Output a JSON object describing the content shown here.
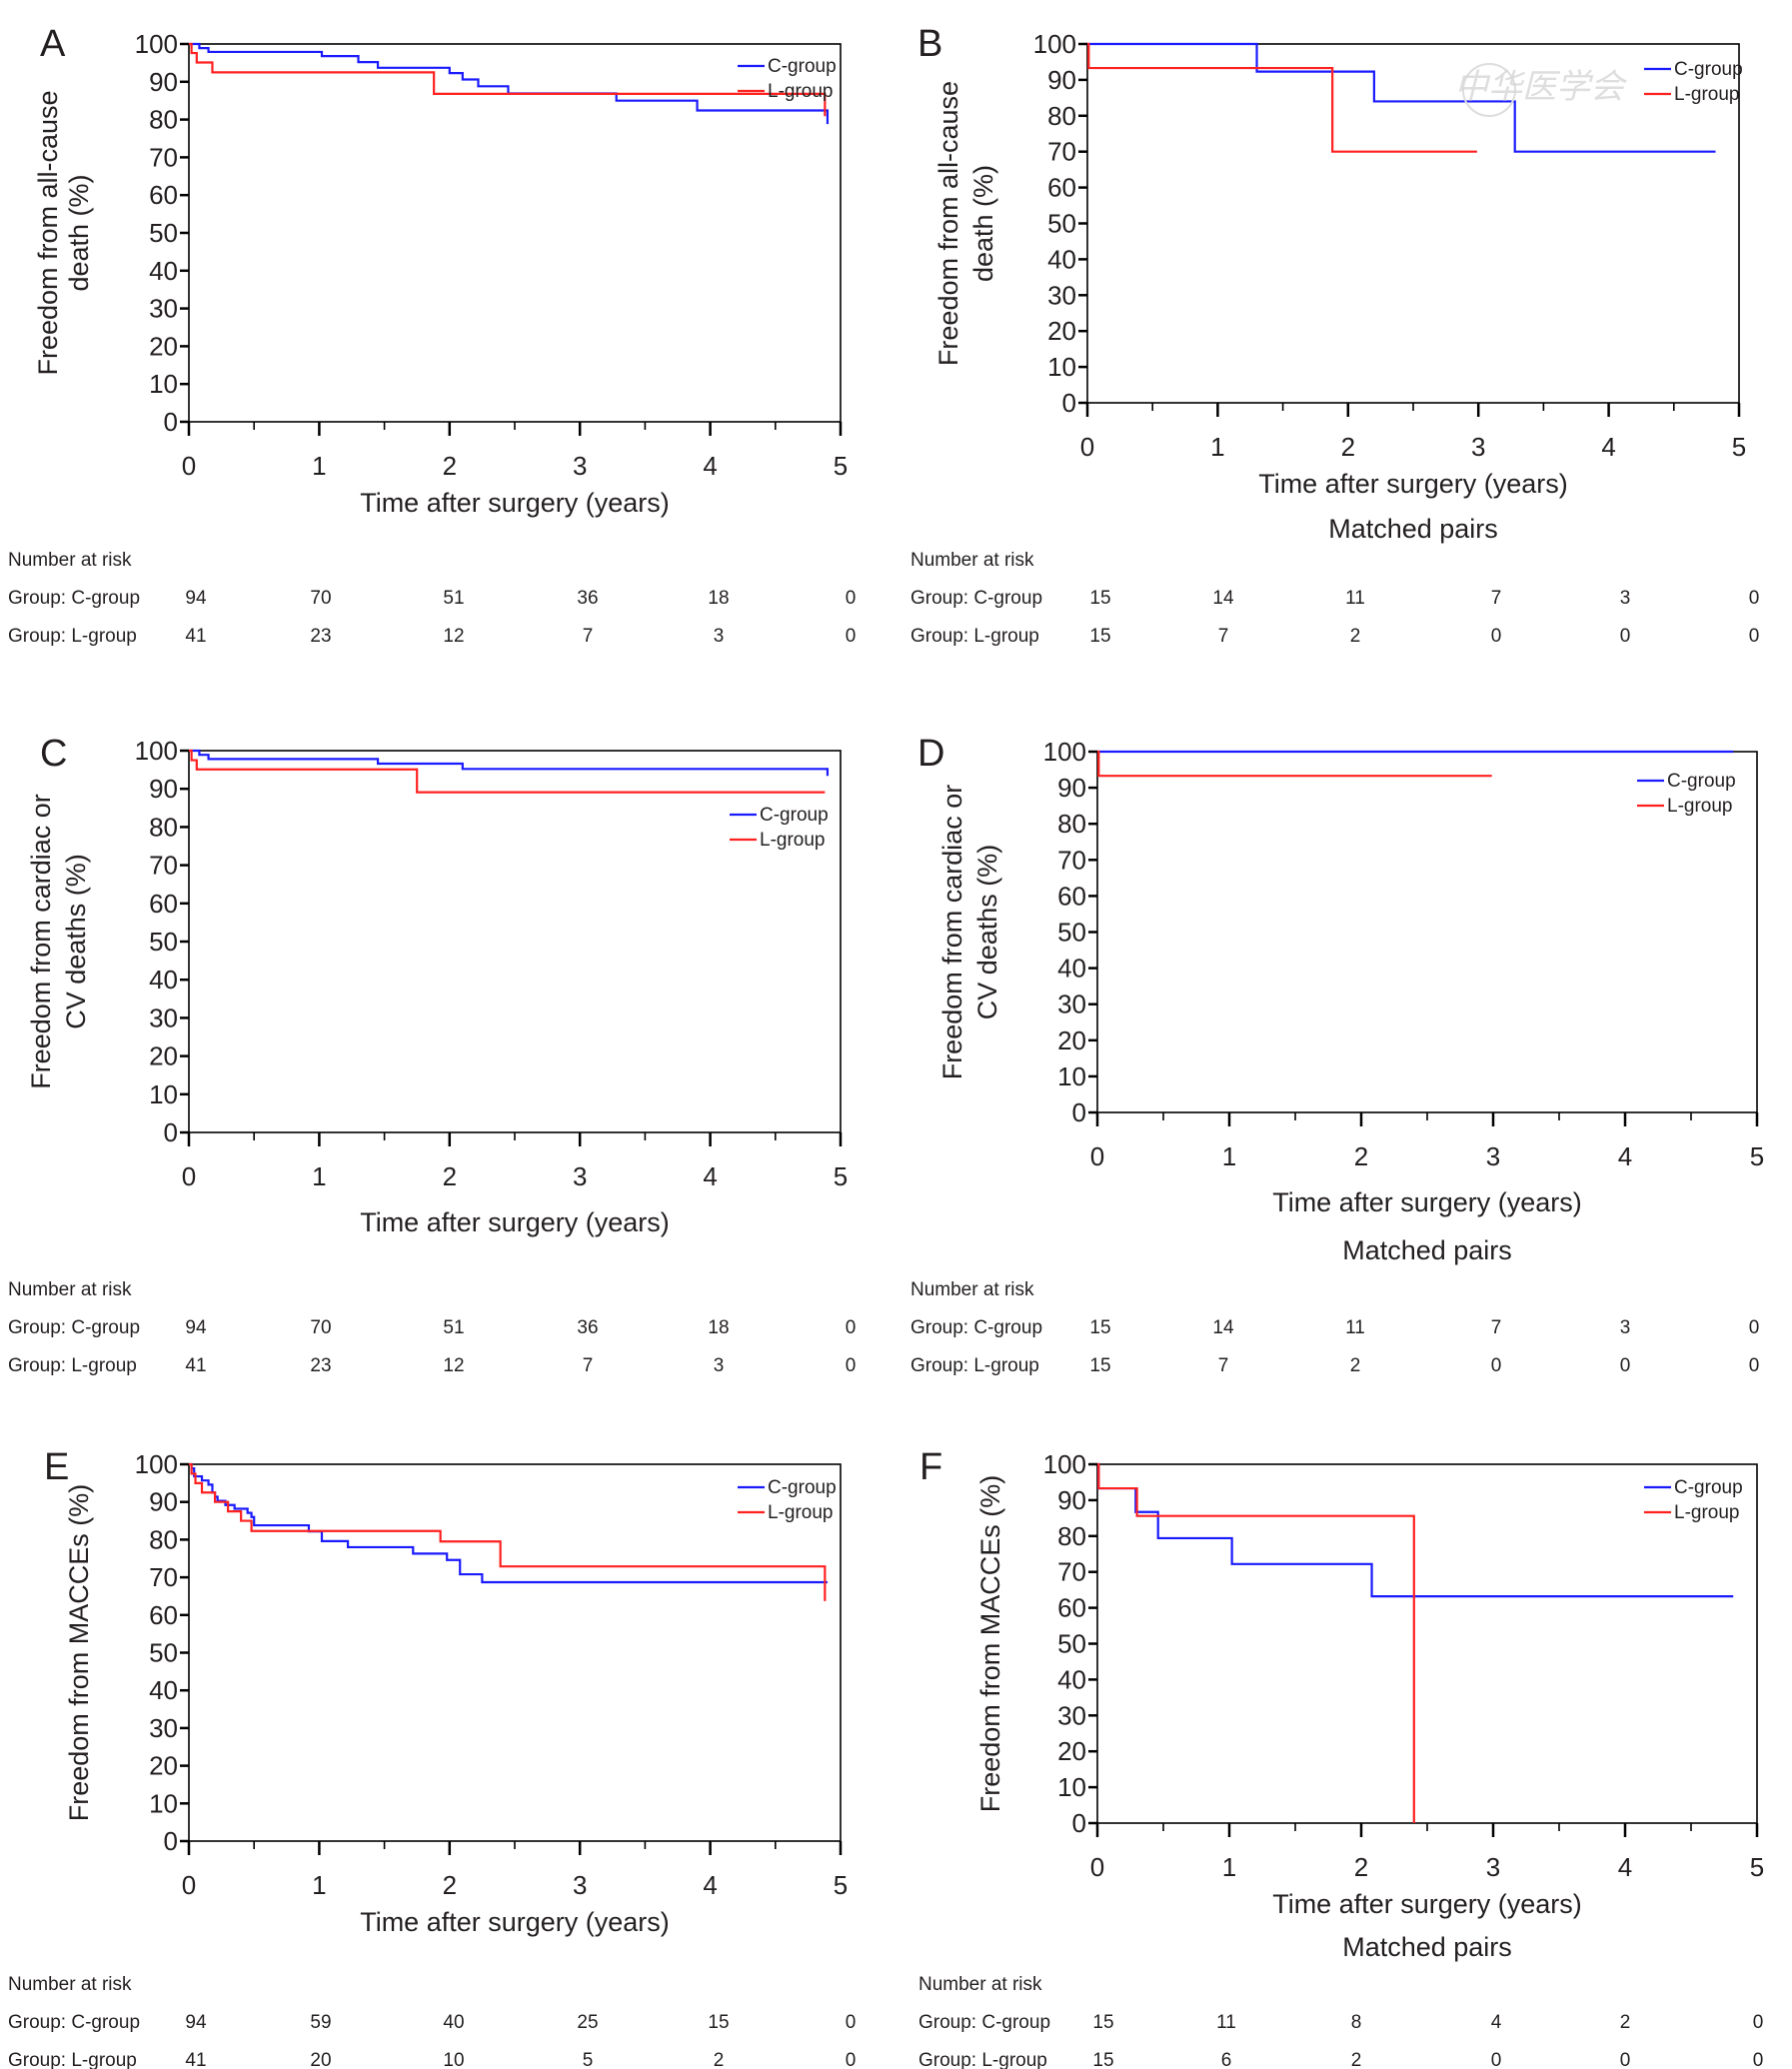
{
  "figure": {
    "watermark": "中华医学会",
    "colors": {
      "c_group": "#1a1aff",
      "l_group": "#ff2020",
      "axis": "#000000",
      "text": "#231f20"
    },
    "risk_header": "Number at risk",
    "risk_row_labels": [
      "Group: C-group",
      "Group: L-group"
    ]
  },
  "chart_data": [
    {
      "panel": "A",
      "type": "line",
      "step": true,
      "title": "",
      "subtitle": "",
      "xlabel": "Time after surgery (years)",
      "ylabel": [
        "Freedom from all-cause",
        "death (%)"
      ],
      "xlim": [
        0,
        5
      ],
      "ylim": [
        0,
        100
      ],
      "xticks": [
        0,
        1,
        2,
        3,
        4,
        5
      ],
      "yticks": [
        0,
        10,
        20,
        30,
        40,
        50,
        60,
        70,
        80,
        90,
        100
      ],
      "legend": {
        "position": "top-right",
        "entries": [
          "C-group",
          "L-group"
        ]
      },
      "series": [
        {
          "name": "C-group",
          "color": "#1a1aff",
          "x": [
            0,
            0.08,
            0.15,
            1.02,
            1.3,
            1.45,
            2.0,
            2.1,
            2.22,
            2.45,
            3.28,
            3.9,
            4.9
          ],
          "y": [
            100,
            98.9,
            97.9,
            96.8,
            95.2,
            93.7,
            92.3,
            90.6,
            88.8,
            86.9,
            85.0,
            82.4,
            78.8
          ]
        },
        {
          "name": "L-group",
          "color": "#ff2020",
          "x": [
            0,
            0.02,
            0.06,
            0.18,
            1.75,
            1.88,
            4.88
          ],
          "y": [
            100,
            97.6,
            95.1,
            92.5,
            92.5,
            86.8,
            80.9
          ]
        }
      ],
      "risk_table": {
        "times": [
          0,
          1,
          2,
          3,
          4,
          5
        ],
        "C-group": [
          94,
          70,
          51,
          36,
          18,
          0
        ],
        "L-group": [
          41,
          23,
          12,
          7,
          3,
          0
        ]
      }
    },
    {
      "panel": "B",
      "type": "line",
      "step": true,
      "subtitle": "Matched pairs",
      "xlabel": "Time after surgery (years)",
      "ylabel": [
        "Freedom from all-cause",
        "death (%)"
      ],
      "xlim": [
        0,
        5
      ],
      "ylim": [
        0,
        100
      ],
      "xticks": [
        0,
        1,
        2,
        3,
        4,
        5
      ],
      "yticks": [
        0,
        10,
        20,
        30,
        40,
        50,
        60,
        70,
        80,
        90,
        100
      ],
      "legend": {
        "position": "top-right",
        "entries": [
          "C-group",
          "L-group"
        ]
      },
      "series": [
        {
          "name": "C-group",
          "color": "#1a1aff",
          "x": [
            0,
            1.3,
            2.2,
            3.28,
            4.82
          ],
          "y": [
            100,
            92.3,
            84.0,
            70.0,
            70.0
          ]
        },
        {
          "name": "L-group",
          "color": "#ff2020",
          "x": [
            0,
            0.01,
            1.88,
            2.99
          ],
          "y": [
            100,
            93.3,
            70.0,
            70.0
          ]
        }
      ],
      "risk_table": {
        "times": [
          0,
          1,
          2,
          3,
          4,
          5
        ],
        "C-group": [
          15,
          14,
          11,
          7,
          3,
          0
        ],
        "L-group": [
          15,
          7,
          2,
          0,
          0,
          0
        ]
      }
    },
    {
      "panel": "C",
      "type": "line",
      "step": true,
      "subtitle": "",
      "xlabel": "Time after surgery (years)",
      "ylabel": [
        "Freedom from cardiac or",
        "CV deaths (%)"
      ],
      "xlim": [
        0,
        5
      ],
      "ylim": [
        0,
        100
      ],
      "xticks": [
        0,
        1,
        2,
        3,
        4,
        5
      ],
      "yticks": [
        0,
        10,
        20,
        30,
        40,
        50,
        60,
        70,
        80,
        90,
        100
      ],
      "legend": {
        "position": "upper-right (below curves)",
        "entries": [
          "C-group",
          "L-group"
        ]
      },
      "series": [
        {
          "name": "C-group",
          "color": "#1a1aff",
          "x": [
            0,
            0.08,
            0.15,
            1.45,
            2.1,
            4.9
          ],
          "y": [
            100,
            98.9,
            97.8,
            96.6,
            95.2,
            93.4
          ]
        },
        {
          "name": "L-group",
          "color": "#ff2020",
          "x": [
            0,
            0.02,
            0.06,
            1.75,
            4.88
          ],
          "y": [
            100,
            97.5,
            95.1,
            89.1,
            89.1
          ]
        }
      ],
      "risk_table": {
        "times": [
          0,
          1,
          2,
          3,
          4,
          5
        ],
        "C-group": [
          94,
          70,
          51,
          36,
          18,
          0
        ],
        "L-group": [
          41,
          23,
          12,
          7,
          3,
          0
        ]
      }
    },
    {
      "panel": "D",
      "type": "line",
      "step": true,
      "subtitle": "Matched pairs",
      "xlabel": "Time after surgery (years)",
      "ylabel": [
        "Freedom from cardiac or",
        "CV deaths (%)"
      ],
      "xlim": [
        0,
        5
      ],
      "ylim": [
        0,
        100
      ],
      "xticks": [
        0,
        1,
        2,
        3,
        4,
        5
      ],
      "yticks": [
        0,
        10,
        20,
        30,
        40,
        50,
        60,
        70,
        80,
        90,
        100
      ],
      "legend": {
        "position": "top-right",
        "entries": [
          "C-group",
          "L-group"
        ]
      },
      "series": [
        {
          "name": "C-group",
          "color": "#1a1aff",
          "x": [
            0,
            4.82
          ],
          "y": [
            100,
            100
          ]
        },
        {
          "name": "L-group",
          "color": "#ff2020",
          "x": [
            0,
            0.01,
            2.99
          ],
          "y": [
            100,
            93.3,
            93.3
          ]
        }
      ],
      "risk_table": {
        "times": [
          0,
          1,
          2,
          3,
          4,
          5
        ],
        "C-group": [
          15,
          14,
          11,
          7,
          3,
          0
        ],
        "L-group": [
          15,
          7,
          2,
          0,
          0,
          0
        ]
      }
    },
    {
      "panel": "E",
      "type": "line",
      "step": true,
      "subtitle": "",
      "xlabel": "Time after surgery (years)",
      "ylabel": [
        "Freedom from MACCEs (%)"
      ],
      "xlim": [
        0,
        5
      ],
      "ylim": [
        0,
        100
      ],
      "xticks": [
        0,
        1,
        2,
        3,
        4,
        5
      ],
      "yticks": [
        0,
        10,
        20,
        30,
        40,
        50,
        60,
        70,
        80,
        90,
        100
      ],
      "legend": {
        "position": "top-right",
        "entries": [
          "C-group",
          "L-group"
        ]
      },
      "series": [
        {
          "name": "C-group",
          "color": "#1a1aff",
          "x": [
            0,
            0.02,
            0.04,
            0.1,
            0.15,
            0.18,
            0.2,
            0.22,
            0.28,
            0.35,
            0.45,
            0.48,
            0.5,
            0.92,
            1.02,
            1.22,
            1.72,
            1.98,
            2.08,
            2.25,
            4.9
          ],
          "y": [
            100,
            98.9,
            96.8,
            95.7,
            94.6,
            92.5,
            91.4,
            90.3,
            89.2,
            88.2,
            87.1,
            86.0,
            83.8,
            82.2,
            79.6,
            78.0,
            76.3,
            74.6,
            70.8,
            68.7,
            68.7
          ]
        },
        {
          "name": "L-group",
          "color": "#ff2020",
          "x": [
            0,
            0.02,
            0.05,
            0.1,
            0.2,
            0.3,
            0.4,
            0.48,
            1.93,
            2.39,
            4.88
          ],
          "y": [
            100,
            97.5,
            95.0,
            92.5,
            90.0,
            87.5,
            85.0,
            82.3,
            79.5,
            72.9,
            63.7
          ]
        }
      ],
      "risk_table": {
        "times": [
          0,
          1,
          2,
          3,
          4,
          5
        ],
        "C-group": [
          94,
          59,
          40,
          25,
          15,
          0
        ],
        "L-group": [
          41,
          20,
          10,
          5,
          2,
          0
        ]
      }
    },
    {
      "panel": "F",
      "type": "line",
      "step": true,
      "subtitle": "Matched pairs",
      "xlabel": "Time after surgery (years)",
      "ylabel": [
        "Freedom from MACCEs (%)"
      ],
      "xlim": [
        0,
        5
      ],
      "ylim": [
        0,
        100
      ],
      "xticks": [
        0,
        1,
        2,
        3,
        4,
        5
      ],
      "yticks": [
        0,
        10,
        20,
        30,
        40,
        50,
        60,
        70,
        80,
        90,
        100
      ],
      "legend": {
        "position": "top-right",
        "entries": [
          "C-group",
          "L-group"
        ]
      },
      "series": [
        {
          "name": "C-group",
          "color": "#1a1aff",
          "x": [
            0,
            0.01,
            0.29,
            0.46,
            1.02,
            2.08,
            4.82
          ],
          "y": [
            100,
            93.3,
            86.7,
            79.4,
            72.2,
            63.2,
            63.2
          ]
        },
        {
          "name": "L-group",
          "color": "#ff2020",
          "x": [
            0,
            0.01,
            0.3,
            2.4
          ],
          "y": [
            100,
            93.3,
            85.6,
            0
          ]
        }
      ],
      "risk_table": {
        "times": [
          0,
          1,
          2,
          3,
          4,
          5
        ],
        "C-group": [
          15,
          11,
          8,
          4,
          2,
          0
        ],
        "L-group": [
          15,
          6,
          2,
          0,
          0,
          0
        ]
      }
    }
  ]
}
